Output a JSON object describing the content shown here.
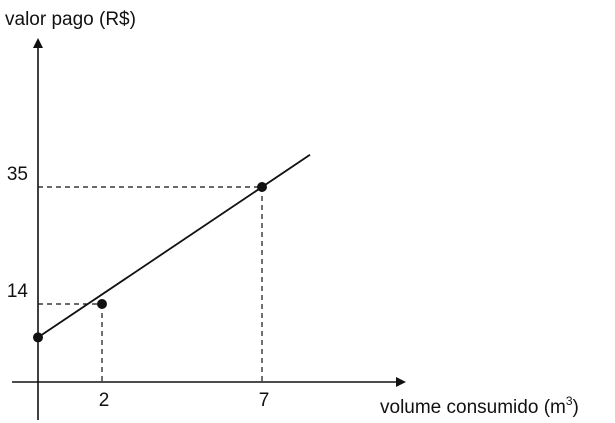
{
  "chart_data": {
    "type": "line",
    "title": "",
    "ylabel": "valor pago (R$)",
    "xlabel": {
      "text": "volume consumido (m",
      "superscript": "3",
      "suffix": ")"
    },
    "x_ticks": [
      "2",
      "7"
    ],
    "y_ticks": [
      "14",
      "35"
    ],
    "xlim": [
      0,
      11.6
    ],
    "ylim": [
      0,
      43
    ],
    "grid": false,
    "legend": "none",
    "series": [
      {
        "points": [
          {
            "x": 0,
            "y": 8
          },
          {
            "x": 2,
            "y": 14
          },
          {
            "x": 7,
            "y": 35
          }
        ],
        "line_extends_to_x": 8.5
      }
    ],
    "colors": {
      "line": "#111111",
      "marker": "#111111",
      "guide": "#111111"
    }
  }
}
